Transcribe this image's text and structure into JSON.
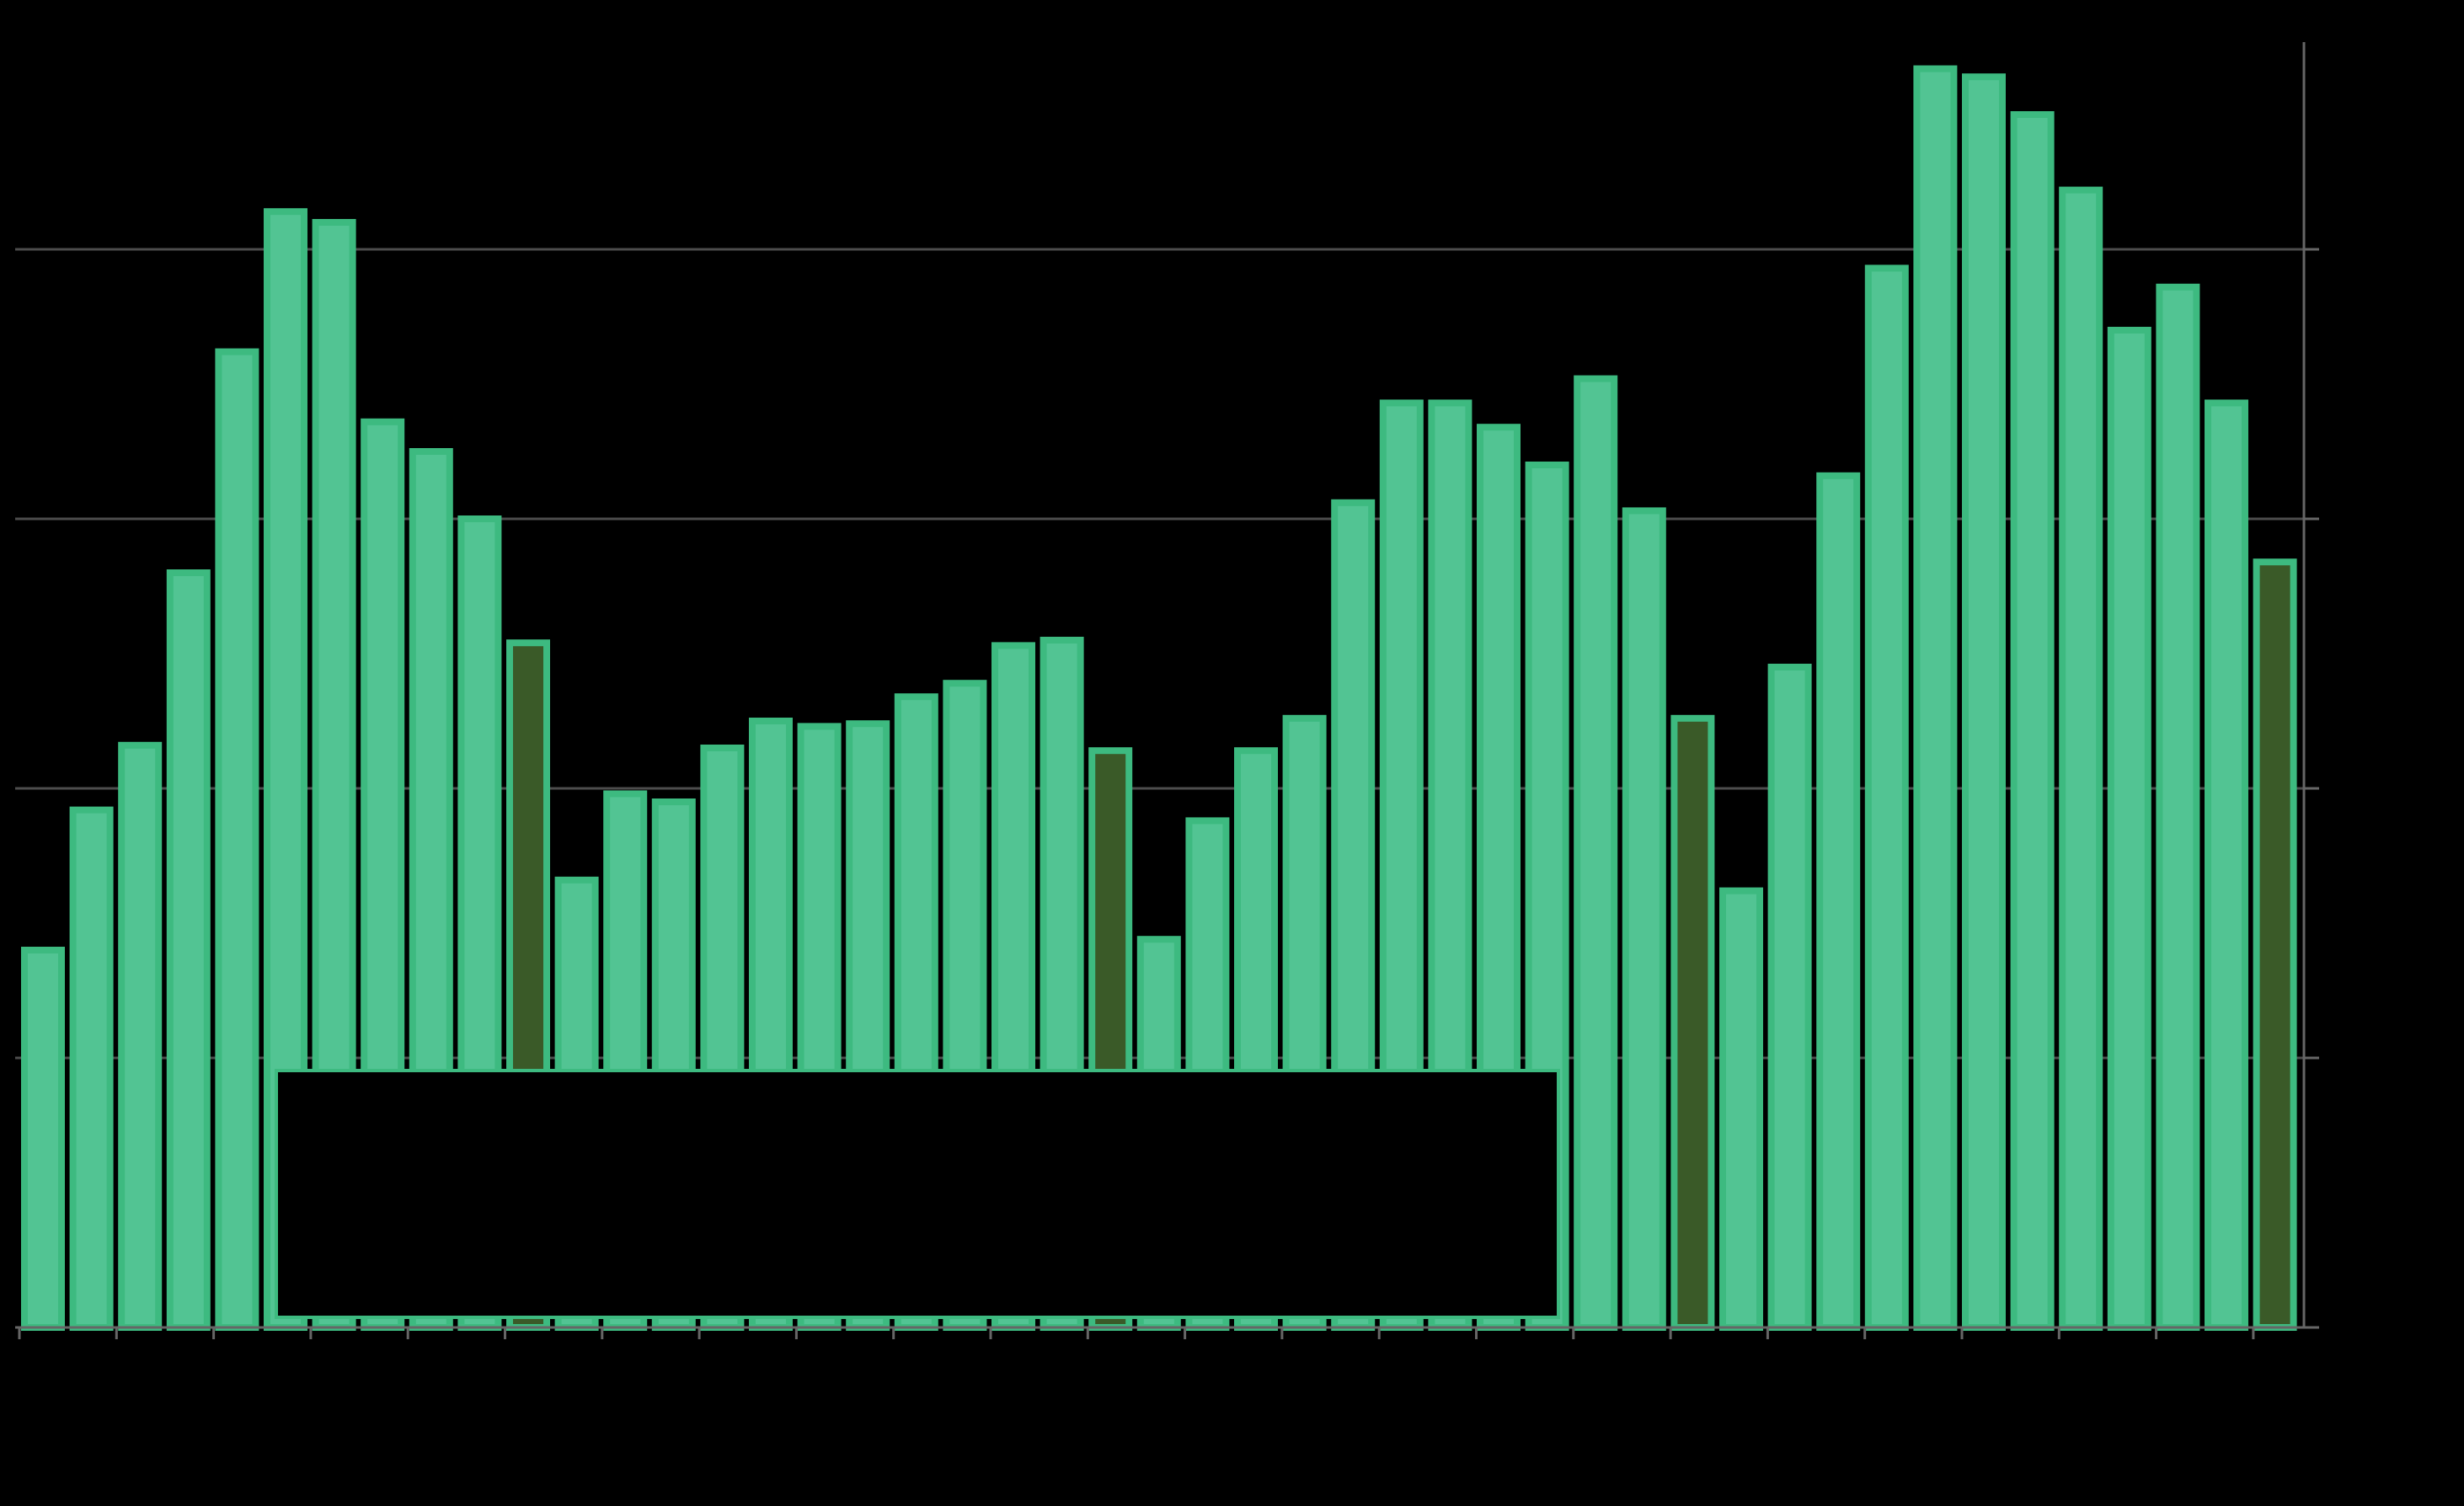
{
  "chart_data": {
    "type": "bar",
    "title": "",
    "xlabel": "",
    "ylabel": "",
    "ylim": [
      0,
      4.8
    ],
    "y_gridlines": [
      1,
      2,
      3,
      4
    ],
    "y_axis_side": "right",
    "grid": true,
    "legend": {
      "placement": "bottom-center",
      "entries": []
    },
    "colors": {
      "background": "#000000",
      "bar_fill": "#52c493",
      "bar_edge": "#3dba80",
      "highlight_fill": "#3a5a28",
      "grid": "#4d4d4d",
      "axis": "#666666"
    },
    "series": [
      {
        "values": [
          1.4,
          1.92,
          2.16,
          2.8,
          3.62,
          4.14,
          4.1,
          3.36,
          3.25,
          3.0,
          2.54,
          1.66,
          1.98,
          1.95,
          2.15,
          2.25,
          2.23,
          2.24,
          2.34,
          2.39,
          2.53,
          2.55,
          2.14,
          1.44,
          1.88,
          2.14,
          2.26,
          3.06,
          3.43,
          3.43,
          3.34,
          3.2,
          3.52,
          3.03,
          2.26,
          1.62,
          2.45,
          3.16,
          3.93,
          4.67,
          4.64,
          4.5,
          4.22,
          3.7,
          3.86,
          3.43,
          2.84
        ],
        "highlight_indices": [
          10,
          22,
          34,
          46
        ]
      }
    ]
  }
}
